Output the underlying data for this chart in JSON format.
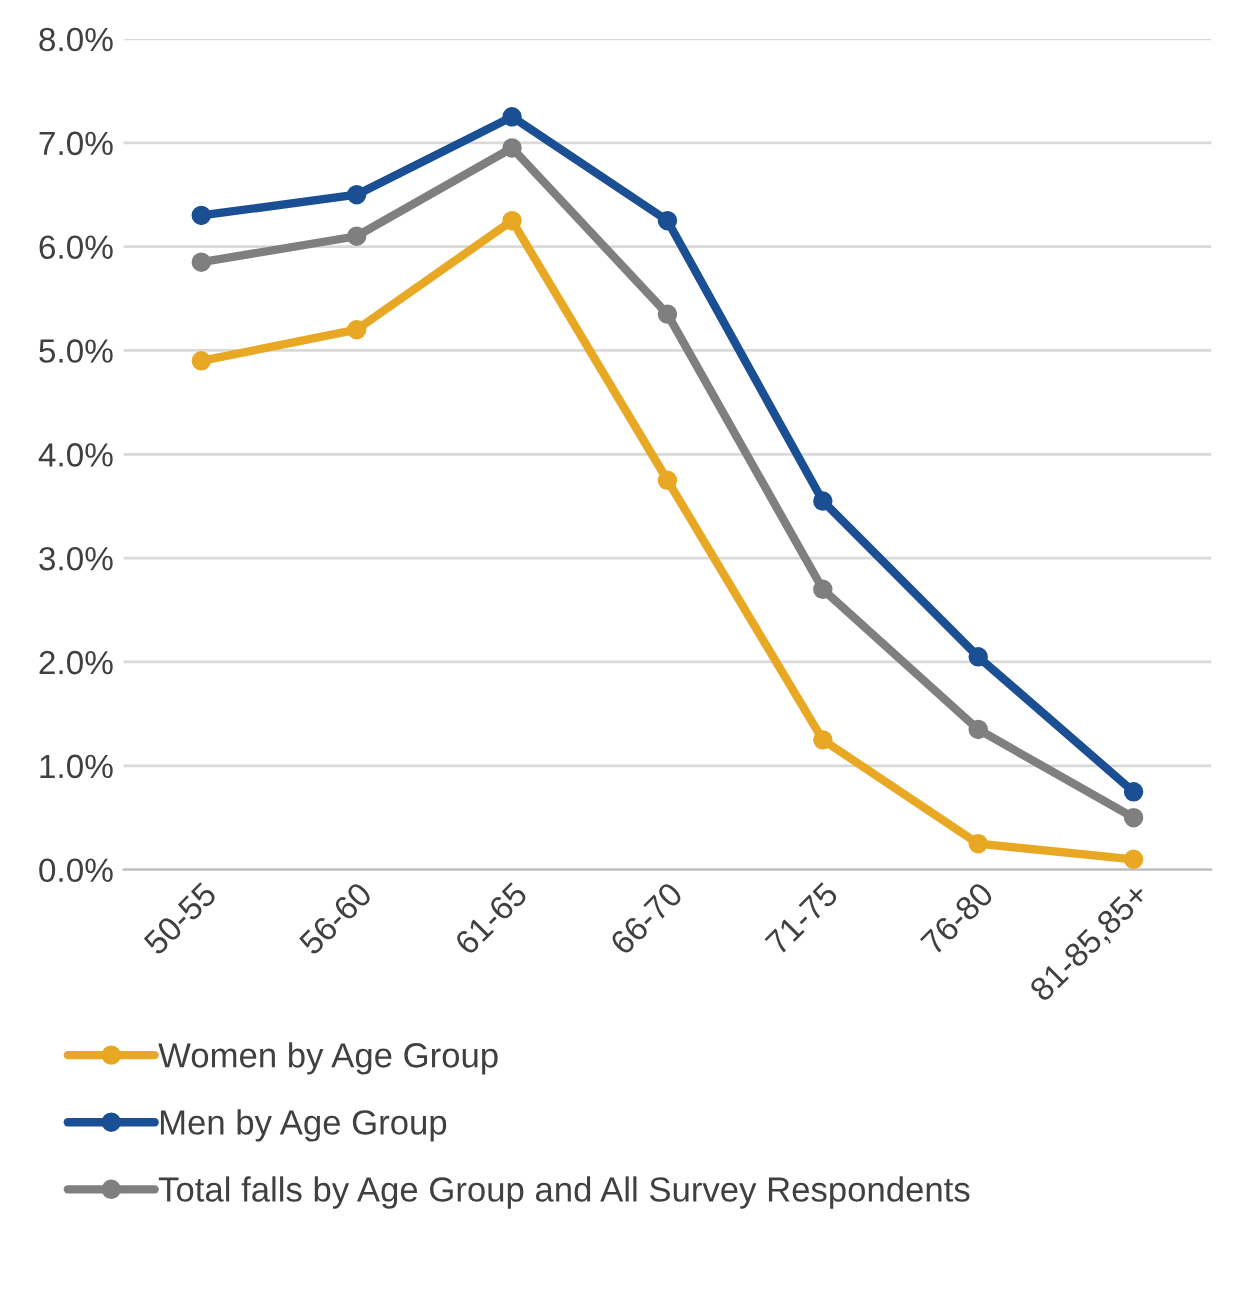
{
  "chart_data": {
    "type": "line",
    "categories": [
      "50-55",
      "56-60",
      "61-65",
      "66-70",
      "71-75",
      "76-80",
      "81-85,85+"
    ],
    "series": [
      {
        "name": "Women by Age Group",
        "color": "#e8a823",
        "values": [
          4.9,
          5.2,
          6.25,
          3.75,
          1.25,
          0.25,
          0.1
        ]
      },
      {
        "name": "Men by Age Group",
        "color": "#1b4f93",
        "values": [
          6.3,
          6.5,
          7.25,
          6.25,
          3.55,
          2.05,
          0.75
        ]
      },
      {
        "name": "Total falls by Age Group and All Survey Respondents",
        "color": "#7f7f7f",
        "values": [
          5.85,
          6.1,
          6.95,
          5.35,
          2.7,
          1.35,
          0.5
        ]
      }
    ],
    "ylim": [
      0,
      8
    ],
    "yticks": [
      {
        "value": 0,
        "label": "0.0%"
      },
      {
        "value": 1,
        "label": "1.0%"
      },
      {
        "value": 2,
        "label": "2.0%"
      },
      {
        "value": 3,
        "label": "3.0%"
      },
      {
        "value": 4,
        "label": "4.0%"
      },
      {
        "value": 5,
        "label": "5.0%"
      },
      {
        "value": 6,
        "label": "6.0%"
      },
      {
        "value": 7,
        "label": "7.0%"
      },
      {
        "value": 8,
        "label": "8.0%"
      }
    ],
    "grid": "y",
    "legend": "bottom",
    "marker": "circle",
    "line_style": "solid"
  }
}
